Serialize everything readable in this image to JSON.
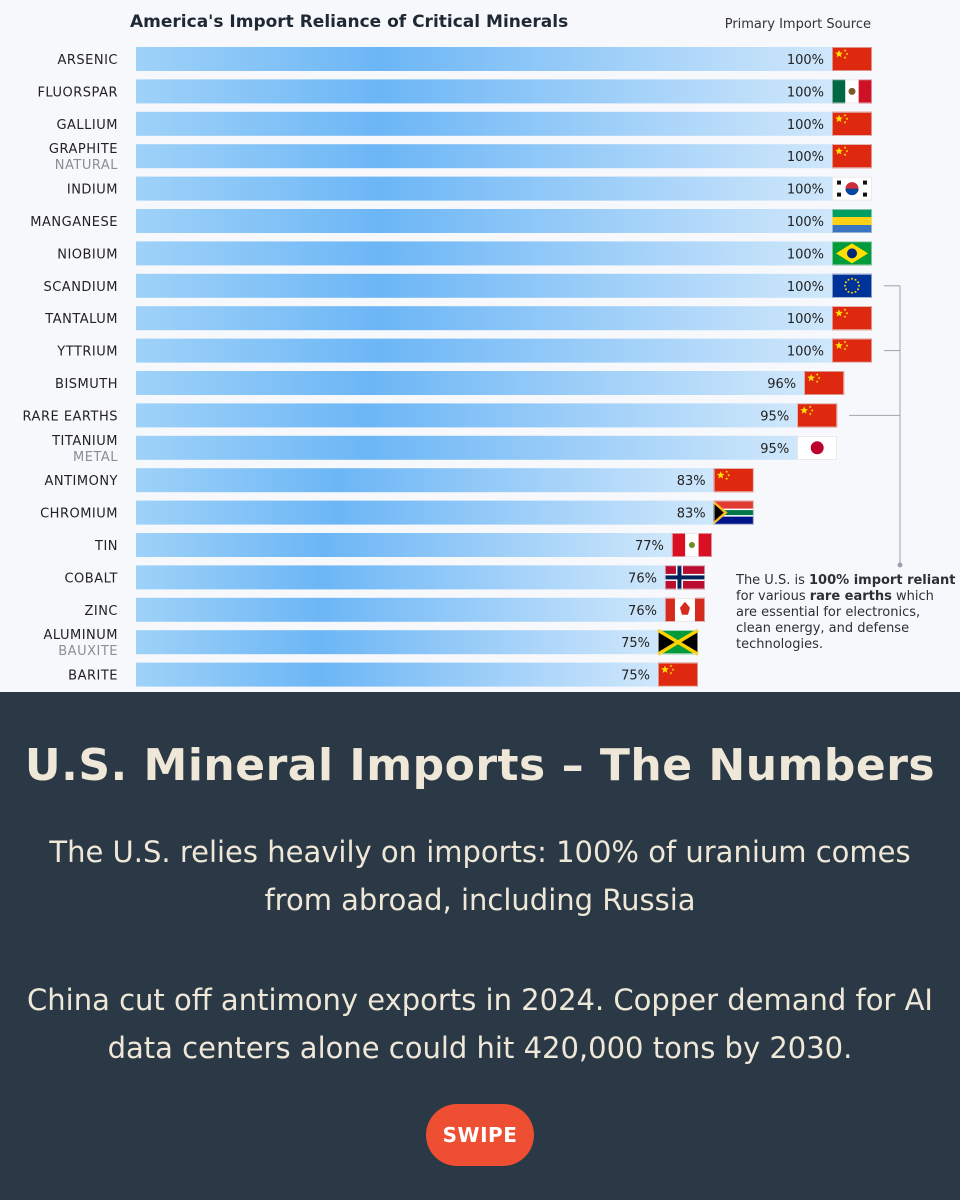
{
  "chart_data": {
    "type": "bar",
    "orientation": "horizontal",
    "title": "America's Import Reliance of Critical Minerals",
    "source_header": "Primary Import Source",
    "xlim": [
      0,
      100
    ],
    "categories": [
      {
        "name": "ARSENIC",
        "sub": "",
        "value": 100,
        "label": "100%",
        "source": "China",
        "flag": "china-flag-icon"
      },
      {
        "name": "FLUORSPAR",
        "sub": "",
        "value": 100,
        "label": "100%",
        "source": "Mexico",
        "flag": "mexico-flag-icon"
      },
      {
        "name": "GALLIUM",
        "sub": "",
        "value": 100,
        "label": "100%",
        "source": "China",
        "flag": "china-flag-icon"
      },
      {
        "name": "GRAPHITE",
        "sub": "NATURAL",
        "value": 100,
        "label": "100%",
        "source": "China",
        "flag": "china-flag-icon"
      },
      {
        "name": "INDIUM",
        "sub": "",
        "value": 100,
        "label": "100%",
        "source": "South Korea",
        "flag": "south-korea-flag-icon"
      },
      {
        "name": "MANGANESE",
        "sub": "",
        "value": 100,
        "label": "100%",
        "source": "Gabon",
        "flag": "gabon-flag-icon"
      },
      {
        "name": "NIOBIUM",
        "sub": "",
        "value": 100,
        "label": "100%",
        "source": "Brazil",
        "flag": "brazil-flag-icon"
      },
      {
        "name": "SCANDIUM",
        "sub": "",
        "value": 100,
        "label": "100%",
        "source": "European Union",
        "flag": "eu-flag-icon"
      },
      {
        "name": "TANTALUM",
        "sub": "",
        "value": 100,
        "label": "100%",
        "source": "China",
        "flag": "china-flag-icon"
      },
      {
        "name": "YTTRIUM",
        "sub": "",
        "value": 100,
        "label": "100%",
        "source": "China",
        "flag": "china-flag-icon"
      },
      {
        "name": "BISMUTH",
        "sub": "",
        "value": 96,
        "label": "96%",
        "source": "China",
        "flag": "china-flag-icon"
      },
      {
        "name": "RARE EARTHS",
        "sub": "",
        "value": 95,
        "label": "95%",
        "source": "China",
        "flag": "china-flag-icon"
      },
      {
        "name": "TITANIUM",
        "sub": "METAL",
        "value": 95,
        "label": "95%",
        "source": "Japan",
        "flag": "japan-flag-icon"
      },
      {
        "name": "ANTIMONY",
        "sub": "",
        "value": 83,
        "label": "83%",
        "source": "China",
        "flag": "china-flag-icon"
      },
      {
        "name": "CHROMIUM",
        "sub": "",
        "value": 83,
        "label": "83%",
        "source": "South Africa",
        "flag": "south-africa-flag-icon"
      },
      {
        "name": "TIN",
        "sub": "",
        "value": 77,
        "label": "77%",
        "source": "Peru",
        "flag": "peru-flag-icon"
      },
      {
        "name": "COBALT",
        "sub": "",
        "value": 76,
        "label": "76%",
        "source": "Norway",
        "flag": "norway-flag-icon"
      },
      {
        "name": "ZINC",
        "sub": "",
        "value": 76,
        "label": "76%",
        "source": "Canada",
        "flag": "canada-flag-icon"
      },
      {
        "name": "ALUMINUM",
        "sub": "BAUXITE",
        "value": 75,
        "label": "75%",
        "source": "Jamaica",
        "flag": "jamaica-flag-icon"
      },
      {
        "name": "BARITE",
        "sub": "",
        "value": 75,
        "label": "75%",
        "source": "China",
        "flag": "china-flag-icon"
      }
    ],
    "colors": {
      "bar_start": "#9fd2f8",
      "bar_mid": "#6cb6f6",
      "bar_end": "#cfe7fb"
    },
    "bracket_rows": [
      "SCANDIUM",
      "YTTRIUM",
      "RARE EARTHS"
    ],
    "annotation": {
      "p1": "The U.S. is ",
      "b1": "100% import reliant",
      "p2": " for various ",
      "b2": "rare earths",
      "p3": " which are essential for electronics, clean energy, and defense technologies."
    }
  },
  "panel": {
    "headline": "U.S. Mineral Imports – The Numbers",
    "paragraph1": "The U.S. relies heavily on imports: 100% of uranium comes from abroad, including Russia",
    "paragraph2": "China cut off antimony exports in 2024. Copper demand for AI data centers alone could hit 420,000 tons by 2030.",
    "button_label": "SWIPE",
    "background": "#2a3945",
    "button_color": "#ee4f32"
  }
}
